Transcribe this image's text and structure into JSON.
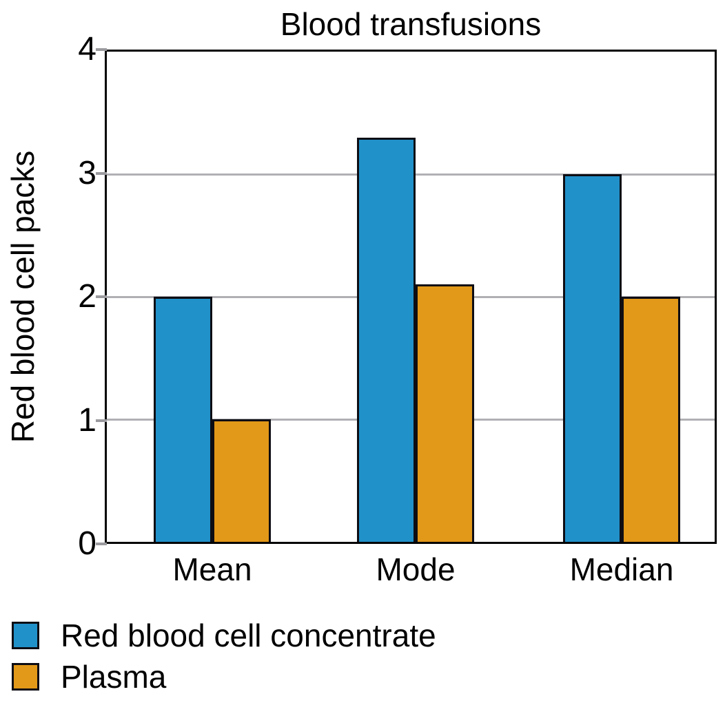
{
  "chart_data": {
    "type": "bar",
    "title": "Blood transfusions",
    "ylabel": "Red blood cell packs",
    "xlabel": "",
    "categories": [
      "Mean",
      "Mode",
      "Median"
    ],
    "series": [
      {
        "name": "Red blood cell concentrate",
        "color": "#2191C9",
        "values": [
          2,
          3.3,
          3
        ]
      },
      {
        "name": "Plasma",
        "color": "#E29818",
        "values": [
          1,
          2.1,
          2
        ]
      }
    ],
    "ylim": [
      0,
      4
    ],
    "yticks": [
      0,
      1,
      2,
      3,
      4
    ],
    "grid": true,
    "gridline_values": [
      1,
      2,
      3
    ],
    "legend_position": "bottom-left",
    "colors": {
      "axis_frame": "#000000",
      "bar_outline": "#0d0d14",
      "gridline": "#b0b0b4",
      "tick": "#9b9b9f",
      "text": "#000000",
      "background": "#ffffff"
    }
  }
}
